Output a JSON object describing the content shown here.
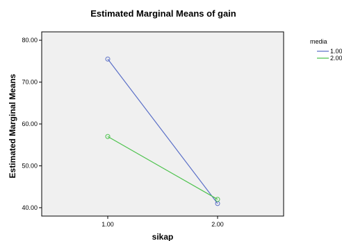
{
  "chart_data": {
    "type": "line",
    "title": "Estimated Marginal Means of gain",
    "xlabel": "sikap",
    "ylabel": "Estimated Marginal Means",
    "categories": [
      "1.00",
      "2.00"
    ],
    "y_ticks": [
      "40.00",
      "50.00",
      "60.00",
      "70.00",
      "80.00"
    ],
    "ylim": [
      38,
      82
    ],
    "grid": false,
    "legend": {
      "title": "media",
      "placement": "right",
      "entries": [
        "1.00",
        "2.00"
      ]
    },
    "series": [
      {
        "name": "1.00",
        "values": [
          75.5,
          41.0
        ],
        "color": "#5a6fc7"
      },
      {
        "name": "2.00",
        "values": [
          57.0,
          42.0
        ],
        "color": "#4cc24c"
      }
    ]
  },
  "colors": {
    "plot_background": "#f0f0f0",
    "axis": "#000000"
  }
}
